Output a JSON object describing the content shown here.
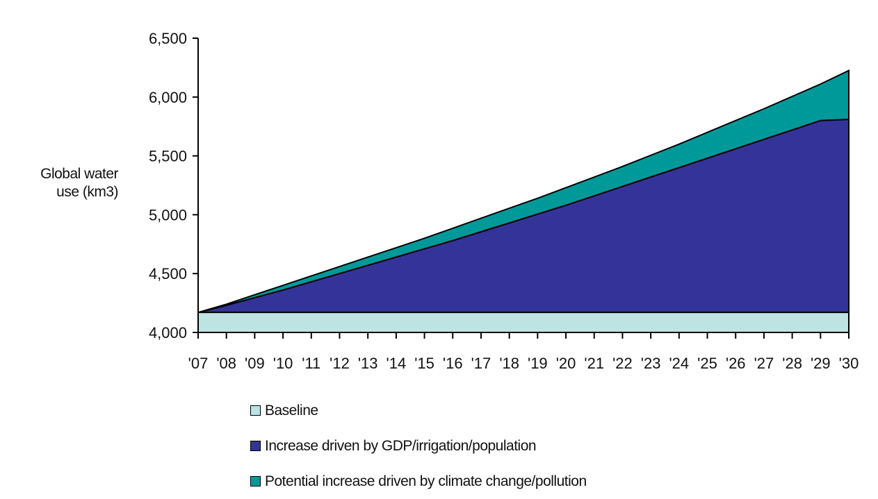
{
  "chart_data": {
    "type": "area",
    "stacked": true,
    "ylabel": "Global water use (km3)",
    "ylim": [
      4000,
      6500
    ],
    "yticks": [
      4000,
      4500,
      5000,
      5500,
      6000,
      6500
    ],
    "ytick_labels": [
      "4,000",
      "4,500",
      "5,000",
      "5,500",
      "6,000",
      "6,500"
    ],
    "categories": [
      "'07",
      "'08",
      "'09",
      "'10",
      "'11",
      "'12",
      "'13",
      "'14",
      "'15",
      "'16",
      "'17",
      "'18",
      "'19",
      "'20",
      "'21",
      "'22",
      "'23",
      "'24",
      "'25",
      "'26",
      "'27",
      "'28",
      "'29",
      "'30"
    ],
    "series": [
      {
        "name": "Baseline",
        "color": "#BDE3E3",
        "values": [
          4170,
          4170,
          4170,
          4170,
          4170,
          4170,
          4170,
          4170,
          4170,
          4170,
          4170,
          4170,
          4170,
          4170,
          4170,
          4170,
          4170,
          4170,
          4170,
          4170,
          4170,
          4170,
          4170,
          4170
        ]
      },
      {
        "name": "Increase driven by GDP/irrigation/population",
        "color": "#333399",
        "cumulative": [
          4170,
          4230,
          4295,
          4360,
          4430,
          4500,
          4570,
          4640,
          4710,
          4780,
          4855,
          4930,
          5005,
          5080,
          5160,
          5240,
          5320,
          5400,
          5480,
          5560,
          5640,
          5720,
          5800,
          5810
        ]
      },
      {
        "name": "Potential increase driven by climate change/pollution",
        "color": "#009999",
        "cumulative": [
          4170,
          4240,
          4320,
          4400,
          4480,
          4560,
          4640,
          4720,
          4800,
          4885,
          4970,
          5055,
          5140,
          5230,
          5320,
          5410,
          5505,
          5600,
          5700,
          5800,
          5900,
          6005,
          6110,
          6225
        ]
      }
    ],
    "legend_position": "bottom",
    "grid": false
  }
}
